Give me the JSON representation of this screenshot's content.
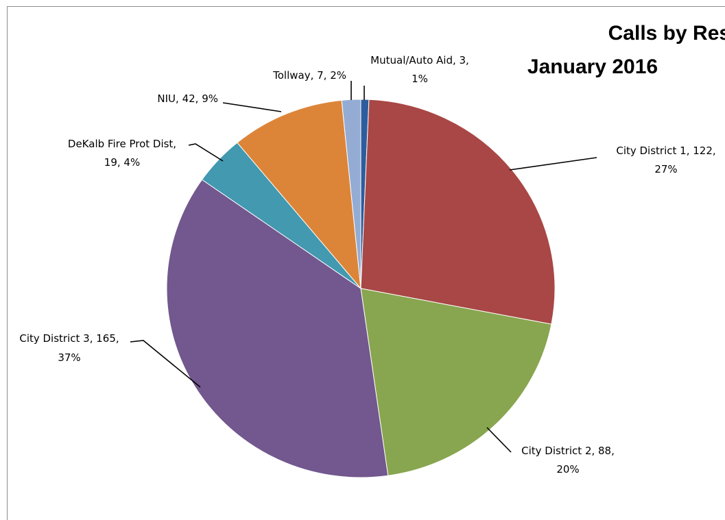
{
  "chart_data": {
    "type": "pie",
    "title": [
      "Calls by Response Area",
      "January 2016"
    ],
    "categories": [
      "Mutual/Auto Aid",
      "City District 1",
      "City District 2",
      "City District 3",
      "DeKalb Fire Prot Dist",
      "NIU",
      "Tollway"
    ],
    "values": [
      3,
      122,
      88,
      165,
      19,
      42,
      7
    ],
    "percents": [
      "1%",
      "27%",
      "20%",
      "37%",
      "4%",
      "9%",
      "2%"
    ],
    "colors": [
      "#2e5d9e",
      "#a84745",
      "#88a64f",
      "#72588e",
      "#4299b0",
      "#dc8539",
      "#94acd4"
    ],
    "data_labels": [
      [
        "Mutual/Auto Aid, 3,",
        "1%"
      ],
      [
        "City District 1, 122,",
        "27%"
      ],
      [
        "City District 2, 88,",
        "20%"
      ],
      [
        "City District 3, 165,",
        "37%"
      ],
      [
        "DeKalb Fire Prot Dist,",
        "19, 4%"
      ],
      [
        "NIU, 42, 9%"
      ],
      [
        "Tollway, 7, 2%"
      ]
    ],
    "legend": "none"
  }
}
